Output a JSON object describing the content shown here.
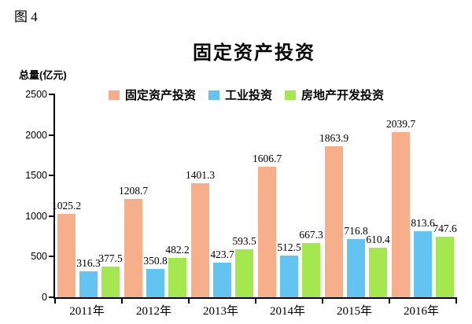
{
  "figure_label": "图 4",
  "chart_data": {
    "type": "bar",
    "title": "固定资产投资",
    "ylabel": "总量(亿元)",
    "categories": [
      "2011年",
      "2012年",
      "2013年",
      "2014年",
      "2015年",
      "2016年"
    ],
    "series": [
      {
        "name": "固定资产投资",
        "color": "#F6AE8B",
        "values": [
          1025.2,
          1208.7,
          1401.3,
          1606.7,
          1863.9,
          2039.7
        ]
      },
      {
        "name": "工业投资",
        "color": "#63C4F1",
        "values": [
          316.3,
          350.8,
          423.7,
          512.5,
          716.8,
          813.6
        ]
      },
      {
        "name": "房地产开发投资",
        "color": "#A4E74E",
        "values": [
          377.5,
          482.2,
          593.5,
          667.3,
          610.4,
          747.6
        ]
      }
    ],
    "ylim": [
      0,
      2500
    ],
    "yticks": [
      0,
      500,
      1000,
      1500,
      2000,
      2500
    ],
    "grid": false,
    "legend_position": "top",
    "axis_color": "#000000",
    "text_color": "#000000"
  }
}
